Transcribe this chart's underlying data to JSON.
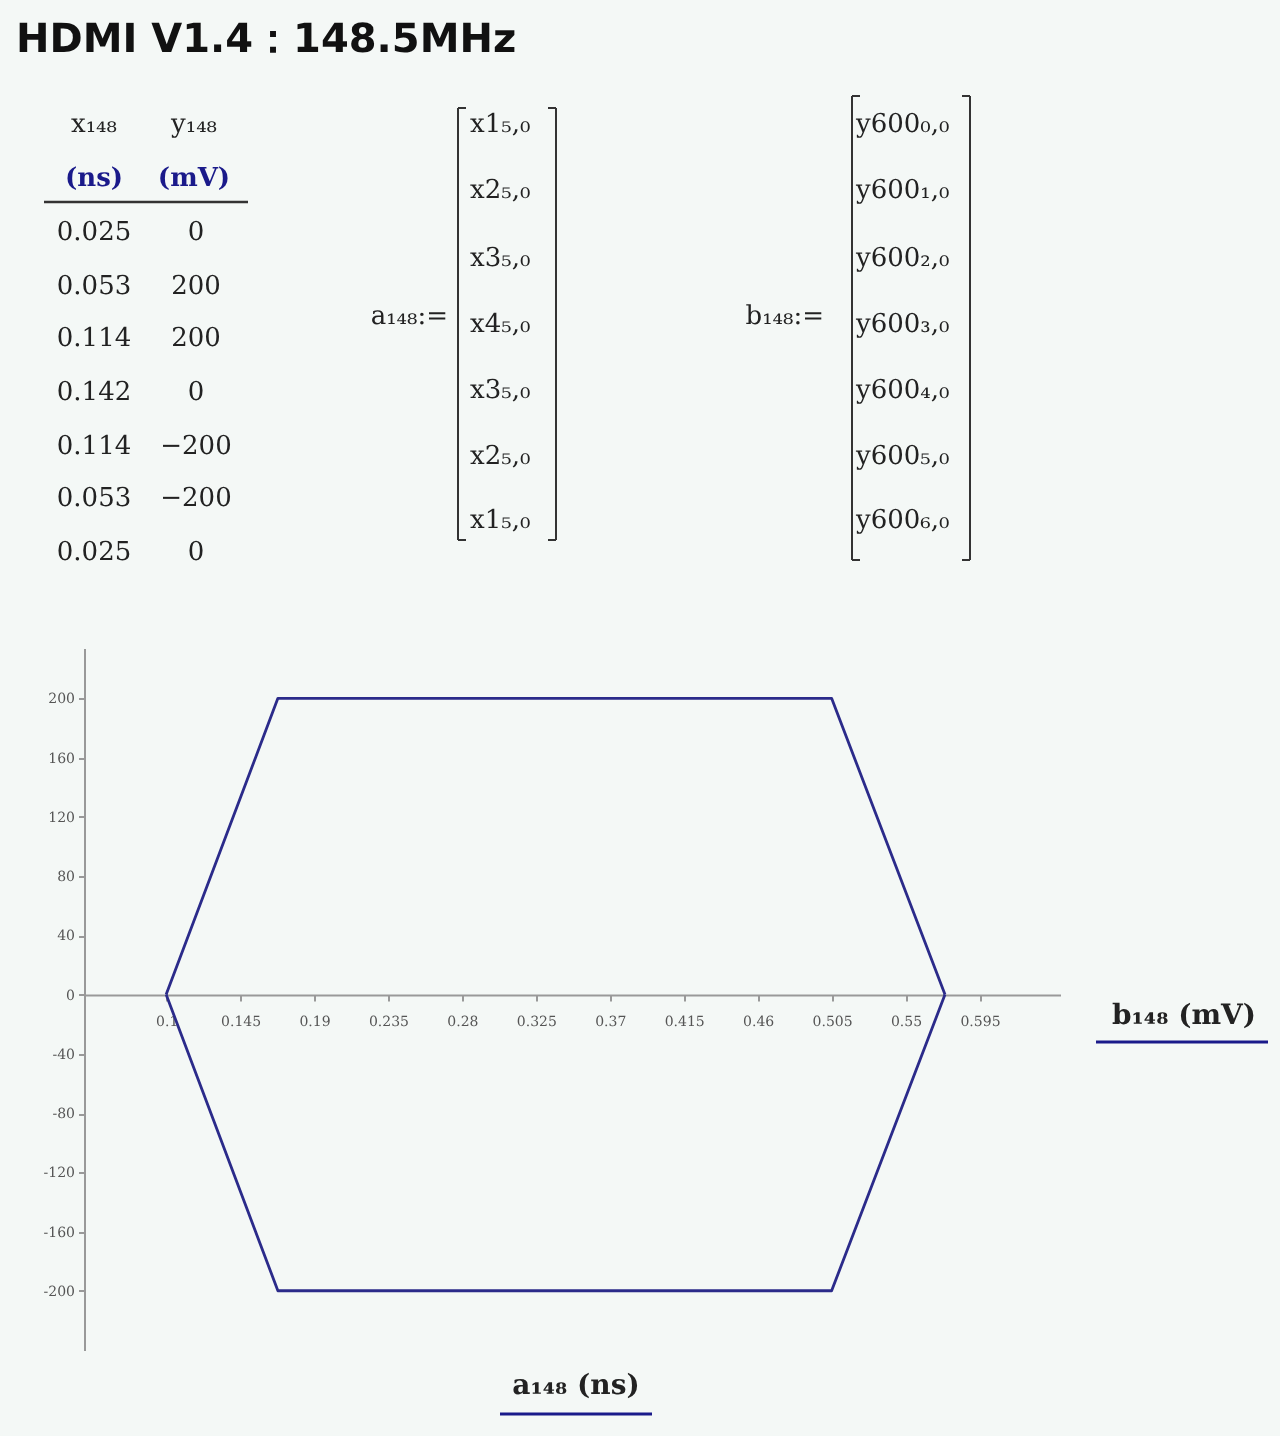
{
  "chart_data": {
    "type": "line",
    "title": "HDMI V1.4：148.5MHz",
    "xlabel": "a₁₄₈ (ns)",
    "ylabel": "b₁₄₈ (mV)",
    "series": [
      {
        "color": "#2b2b8a",
        "x": [
          0.1,
          0.168,
          0.505,
          0.574
        ],
        "values": [
          0,
          200,
          200,
          0
        ]
      },
      {
        "color": "#2b2b8a",
        "x": [
          0.1,
          0.168,
          0.505,
          0.574
        ],
        "values": [
          0,
          -200,
          -200,
          0
        ]
      }
    ],
    "xlim": [
      0.05,
      0.644
    ],
    "ylim": [
      -240,
      234
    ],
    "xticks": [
      {
        "value": 0.1,
        "label": "0.1"
      },
      0.145,
      0.19,
      0.235,
      0.28,
      0.325,
      0.37,
      0.415,
      0.46,
      0.505,
      0.55,
      0.595
    ],
    "yticks": [
      -200,
      -160,
      -120,
      -80,
      -40,
      0,
      40,
      80,
      120,
      160,
      200
    ],
    "grid": false,
    "legend": false,
    "marker": "none",
    "line_style": "solid",
    "annotations": [
      "x₁₄₈",
      "y₁₄₈",
      "(ns)",
      "(mV)",
      "0.025",
      "0",
      "0.053",
      "200",
      "0.114",
      "200",
      "0.142",
      "0",
      "0.114",
      "−200",
      "0.053",
      "−200",
      "0.025",
      "0",
      "a₁₄₈:=",
      "x1₅,₀",
      "x2₅,₀",
      "x3₅,₀",
      "x4₅,₀",
      "x3₅,₀",
      "x2₅,₀",
      "x1₅,₀",
      "b₁₄₈:=",
      "y600₀,₀",
      "y600₁,₀",
      "y600₂,₀",
      "y600₃,₀",
      "y600₄,₀",
      "y600₅,₀",
      "y600₆,₀"
    ]
  }
}
